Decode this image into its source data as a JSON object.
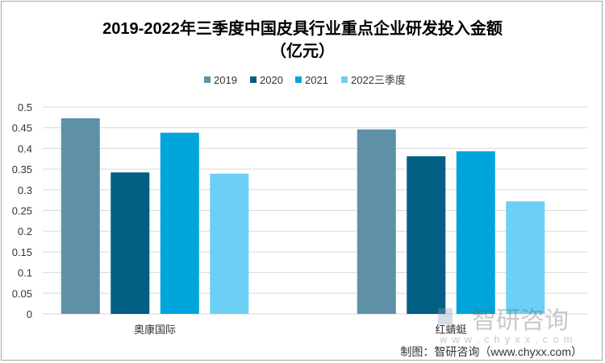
{
  "chart_data": {
    "type": "bar",
    "title": "2019-2022年三季度中国皮具行业重点企业研发投入金额",
    "subtitle": "（亿元）",
    "categories": [
      "奥康国际",
      "红蜻蜓"
    ],
    "series": [
      {
        "name": "2019",
        "color": "#5e91a8",
        "values": [
          0.473,
          0.446
        ]
      },
      {
        "name": "2020",
        "color": "#005f83",
        "values": [
          0.342,
          0.381
        ]
      },
      {
        "name": "2021",
        "color": "#00a5dc",
        "values": [
          0.438,
          0.393
        ]
      },
      {
        "name": "2022三季度",
        "color": "#6dcff6",
        "values": [
          0.339,
          0.272
        ]
      }
    ],
    "ylim": [
      0,
      0.5
    ],
    "yticks": [
      "0",
      "0.05",
      "0.1",
      "0.15",
      "0.2",
      "0.25",
      "0.3",
      "0.35",
      "0.4",
      "0.45",
      "0.5"
    ],
    "grid": true,
    "legend_position": "top"
  },
  "source": "制图：智研咨询（www.chyxx.com）",
  "watermark": {
    "cn": "智研咨询",
    "url": "www.chyxx.com"
  }
}
